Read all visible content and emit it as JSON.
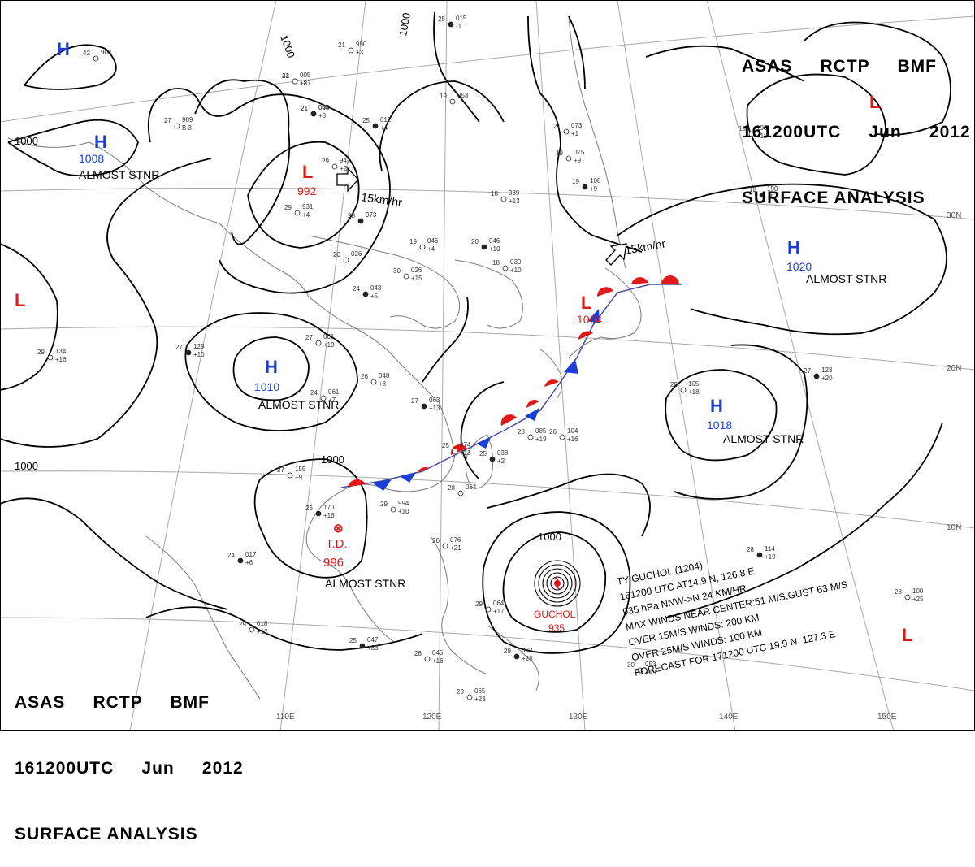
{
  "header": {
    "line1": "ASAS     RCTP     BMF",
    "line2": "161200UTC     Jun     2012",
    "line3": "SURFACE ANALYSIS"
  },
  "footer": {
    "line1": "ASAS     RCTP     BMF",
    "line2": "161200UTC     Jun     2012",
    "line3": "SURFACE ANALYSIS"
  },
  "grid_labels": {
    "lon": [
      "110E",
      "120E",
      "130E",
      "140E",
      "150E"
    ],
    "lat": [
      "30N",
      "20N",
      "10N"
    ]
  },
  "isobar_labels": [
    "1000",
    "1000",
    "1000",
    "1000",
    "1000",
    "1000"
  ],
  "pressure_centers": [
    {
      "type": "H",
      "value": "",
      "note": "",
      "color": "#1a3fd6"
    },
    {
      "type": "H",
      "value": "1008",
      "note": "ALMOST STNR",
      "color": "#1a3fd6"
    },
    {
      "type": "L",
      "value": "992",
      "note": "",
      "color": "#e01818"
    },
    {
      "type": "L",
      "value": "",
      "note": "",
      "color": "#e01818"
    },
    {
      "type": "H",
      "value": "1010",
      "note": "ALMOST STNR",
      "color": "#1a3fd6"
    },
    {
      "type": "L",
      "value": "1004",
      "note": "",
      "color": "#e01818"
    },
    {
      "type": "H",
      "value": "1020",
      "note": "ALMOST STNR",
      "color": "#1a3fd6"
    },
    {
      "type": "H",
      "value": "1018",
      "note": "ALMOST STNR",
      "color": "#1a3fd6"
    },
    {
      "type": "L",
      "value": "",
      "note": "",
      "color": "#e01818"
    },
    {
      "type": "L",
      "value": "",
      "note": "",
      "color": "#e01818"
    },
    {
      "type": "T.D.",
      "value": "996",
      "note": "ALMOST STNR",
      "color": "#e01818"
    }
  ],
  "motion_labels": [
    "15km/hr",
    "15km/hr"
  ],
  "typhoon": {
    "name": "GUCHOL",
    "pressure": "935",
    "info": [
      "TY GUCHOL (1204)",
      "161200 UTC AT14.9 N, 126.8 E",
      "935 hPa NNW->N 24 KM/HR",
      "MAX WINDS NEAR CENTER:51 M/S,GUST 63 M/S",
      "OVER 15M/S WINDS: 200 KM",
      "OVER 25M/S WINDS: 100 KM",
      "FORECAST FOR 171200 UTC 19.9 N, 127.3 E"
    ]
  },
  "stations": [
    {
      "t": "21",
      "p": "005",
      "d": "+8"
    },
    {
      "t": "21",
      "p": "004",
      "d": "+3"
    },
    {
      "t": "27",
      "p": "989",
      "d": "B 3"
    },
    {
      "t": "25",
      "p": "012",
      "d": "+4"
    },
    {
      "t": "19",
      "p": "053",
      "d": ""
    },
    {
      "t": "21",
      "p": "990",
      "d": "+3"
    },
    {
      "t": "25",
      "p": "015",
      "d": "-1"
    },
    {
      "t": "21",
      "p": "073",
      "d": "+1"
    },
    {
      "t": "19",
      "p": "075",
      "d": "+9"
    },
    {
      "t": "19",
      "p": "108",
      "d": "+9"
    },
    {
      "t": "29",
      "p": "947",
      "d": "+2"
    },
    {
      "t": "29",
      "p": "931",
      "d": "+4"
    },
    {
      "t": "28",
      "p": "973",
      "d": ""
    },
    {
      "t": "18",
      "p": "039",
      "d": "+13"
    },
    {
      "t": "19",
      "p": "046",
      "d": "+4"
    },
    {
      "t": "20",
      "p": "046",
      "d": "+10"
    },
    {
      "t": "30",
      "p": "026",
      "d": "+15"
    },
    {
      "t": "18",
      "p": "030",
      "d": "+10"
    },
    {
      "t": "24",
      "p": "043",
      "d": "+5"
    },
    {
      "t": "20",
      "p": "026",
      "d": ""
    },
    {
      "t": "13",
      "p": "190",
      "d": "+11"
    },
    {
      "t": "13",
      "p": "190",
      "d": "+5"
    },
    {
      "t": "27",
      "p": "061",
      "d": "+19"
    },
    {
      "t": "26",
      "p": "048",
      "d": "+8"
    },
    {
      "t": "27",
      "p": "063",
      "d": "+13"
    },
    {
      "t": "24",
      "p": "061",
      "d": "+7"
    },
    {
      "t": "25",
      "p": "074",
      "d": "+13"
    },
    {
      "t": "25",
      "p": "038",
      "d": "+2"
    },
    {
      "t": "28",
      "p": "085",
      "d": "+19"
    },
    {
      "t": "26",
      "p": "104",
      "d": "+16"
    },
    {
      "t": "27",
      "p": "123",
      "d": "+20"
    },
    {
      "t": "28",
      "p": "105",
      "d": "+18"
    },
    {
      "t": "27",
      "p": "155",
      "d": "+9"
    },
    {
      "t": "26",
      "p": "170",
      "d": "+16"
    },
    {
      "t": "29",
      "p": "994",
      "d": "+10"
    },
    {
      "t": "28",
      "p": "064",
      "d": ""
    },
    {
      "t": "24",
      "p": "017",
      "d": "+6"
    },
    {
      "t": "26",
      "p": "076",
      "d": "+21"
    },
    {
      "t": "29",
      "p": "018",
      "d": "+12"
    },
    {
      "t": "25",
      "p": "047",
      "d": "+33"
    },
    {
      "t": "28",
      "p": "045",
      "d": "+16"
    },
    {
      "t": "29",
      "p": "064",
      "d": "+17"
    },
    {
      "t": "29",
      "p": "082",
      "d": "+26"
    },
    {
      "t": "30",
      "p": "053",
      "d": "+19"
    },
    {
      "t": "28",
      "p": "065",
      "d": "+23"
    },
    {
      "t": "28",
      "p": "114",
      "d": "+19"
    },
    {
      "t": "28",
      "p": "100",
      "d": "+25"
    },
    {
      "t": "29",
      "p": "134",
      "d": "+16"
    },
    {
      "t": "27",
      "p": "129",
      "d": "+10"
    },
    {
      "t": "42",
      "p": "904",
      "d": ""
    },
    {
      "t": "33",
      "p": "",
      "d": "+27"
    },
    {
      "t": "21",
      "p": "045",
      "d": ""
    }
  ],
  "colors": {
    "high": "#1a3fd6",
    "low": "#e01818",
    "warm_front": "#e01818",
    "cold_front": "#1a3fd6",
    "isobar": "#000000",
    "coast": "#777777",
    "grid": "#a0a0a0"
  }
}
